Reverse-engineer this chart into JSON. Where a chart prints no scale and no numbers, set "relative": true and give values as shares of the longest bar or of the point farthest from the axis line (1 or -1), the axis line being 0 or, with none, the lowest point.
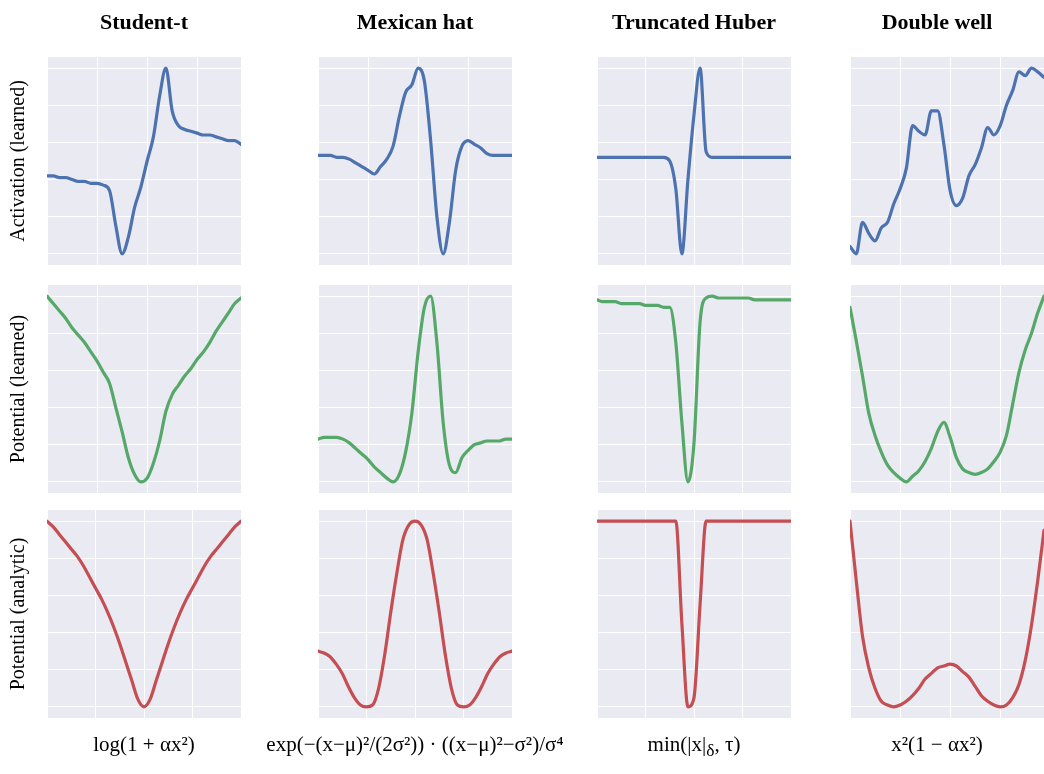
{
  "chart_data": [
    {
      "type": "line",
      "relative": true,
      "grid": true,
      "tick_labels": false,
      "marker": "none",
      "line_style": "solid",
      "title": "Student-t",
      "ylabel": "Activation (learned)",
      "categories": [
        null,
        null,
        null,
        null,
        null,
        null,
        null,
        null,
        null,
        null,
        null,
        null,
        null,
        null,
        null,
        null,
        null,
        null,
        null,
        null,
        null,
        null,
        null,
        null,
        null,
        null,
        null,
        null,
        null,
        null,
        null,
        null
      ],
      "series": [
        {
          "color": "#4c72b0",
          "values": [
            0.42,
            0.42,
            0.41,
            0.41,
            0.4,
            0.39,
            0.39,
            0.38,
            0.38,
            0.37,
            0.34,
            0.15,
            0,
            0.09,
            0.25,
            0.36,
            0.5,
            0.63,
            0.85,
            1,
            0.77,
            0.69,
            0.67,
            0.66,
            0.65,
            0.64,
            0.64,
            0.63,
            0.62,
            0.61,
            0.61,
            0.59
          ]
        }
      ]
    },
    {
      "type": "line",
      "relative": true,
      "grid": true,
      "tick_labels": false,
      "marker": "none",
      "line_style": "solid",
      "title": "Mexican hat",
      "categories": [
        null,
        null,
        null,
        null,
        null,
        null,
        null,
        null,
        null,
        null,
        null,
        null,
        null,
        null,
        null,
        null,
        null,
        null,
        null,
        null,
        null,
        null,
        null,
        null,
        null,
        null,
        null,
        null,
        null,
        null,
        null,
        null
      ],
      "series": [
        {
          "color": "#4c72b0",
          "values": [
            0.53,
            0.53,
            0.53,
            0.52,
            0.52,
            0.51,
            0.49,
            0.47,
            0.45,
            0.43,
            0.47,
            0.51,
            0.58,
            0.74,
            0.87,
            0.91,
            1,
            0.93,
            0.61,
            0.2,
            0,
            0.17,
            0.45,
            0.58,
            0.61,
            0.59,
            0.57,
            0.54,
            0.53,
            0.53,
            0.53,
            0.53
          ]
        }
      ]
    },
    {
      "type": "line",
      "relative": true,
      "grid": true,
      "tick_labels": false,
      "marker": "none",
      "line_style": "solid",
      "title": "Truncated Huber",
      "categories": [
        null,
        null,
        null,
        null,
        null,
        null,
        null,
        null,
        null,
        null,
        null,
        null,
        null,
        null,
        null,
        null,
        null,
        null,
        null,
        null,
        null,
        null,
        null,
        null,
        null,
        null,
        null,
        null,
        null,
        null,
        null,
        null,
        null
      ],
      "series": [
        {
          "color": "#4c72b0",
          "values": [
            0.52,
            0.52,
            0.52,
            0.52,
            0.52,
            0.52,
            0.52,
            0.52,
            0.52,
            0.52,
            0.52,
            0.52,
            0.5,
            0.35,
            0,
            0.4,
            0.75,
            1,
            0.55,
            0.52,
            0.52,
            0.52,
            0.52,
            0.52,
            0.52,
            0.52,
            0.52,
            0.52,
            0.52,
            0.52,
            0.52,
            0.52,
            0.52
          ]
        }
      ]
    },
    {
      "type": "line",
      "relative": true,
      "grid": true,
      "tick_labels": false,
      "marker": "none",
      "line_style": "solid",
      "title": "Double well",
      "categories": [
        null,
        null,
        null,
        null,
        null,
        null,
        null,
        null,
        null,
        null,
        null,
        null,
        null,
        null,
        null,
        null,
        null,
        null,
        null,
        null,
        null,
        null,
        null,
        null,
        null,
        null,
        null,
        null,
        null,
        null,
        null,
        null
      ],
      "series": [
        {
          "color": "#4c72b0",
          "values": [
            0.04,
            0,
            0.17,
            0.11,
            0.07,
            0.14,
            0.17,
            0.27,
            0.35,
            0.46,
            0.69,
            0.66,
            0.64,
            0.77,
            0.77,
            0.59,
            0.34,
            0.26,
            0.3,
            0.42,
            0.48,
            0.57,
            0.68,
            0.64,
            0.69,
            0.8,
            0.88,
            0.98,
            0.96,
            1,
            0.98,
            0.95
          ]
        }
      ]
    },
    {
      "type": "line",
      "relative": true,
      "grid": true,
      "tick_labels": false,
      "marker": "none",
      "line_style": "solid",
      "ylabel": "Potential (learned)",
      "categories": [
        null,
        null,
        null,
        null,
        null,
        null,
        null,
        null,
        null,
        null,
        null,
        null,
        null,
        null,
        null,
        null,
        null,
        null,
        null,
        null,
        null,
        null,
        null,
        null,
        null,
        null,
        null,
        null,
        null,
        null,
        null,
        null
      ],
      "series": [
        {
          "color": "#55a868",
          "values": [
            1,
            0.96,
            0.92,
            0.88,
            0.83,
            0.79,
            0.75,
            0.7,
            0.65,
            0.59,
            0.53,
            0.4,
            0.27,
            0.13,
            0.04,
            0,
            0.02,
            0.1,
            0.22,
            0.38,
            0.47,
            0.52,
            0.57,
            0.61,
            0.66,
            0.7,
            0.75,
            0.81,
            0.86,
            0.91,
            0.96,
            0.99
          ]
        }
      ]
    },
    {
      "type": "line",
      "relative": true,
      "grid": true,
      "tick_labels": false,
      "marker": "none",
      "line_style": "solid",
      "categories": [
        null,
        null,
        null,
        null,
        null,
        null,
        null,
        null,
        null,
        null,
        null,
        null,
        null,
        null,
        null,
        null,
        null,
        null,
        null,
        null,
        null,
        null,
        null,
        null,
        null,
        null,
        null,
        null,
        null,
        null,
        null,
        null
      ],
      "series": [
        {
          "color": "#55a868",
          "values": [
            0.23,
            0.24,
            0.24,
            0.24,
            0.23,
            0.21,
            0.18,
            0.15,
            0.12,
            0.08,
            0.05,
            0.02,
            0,
            0.04,
            0.16,
            0.37,
            0.7,
            0.94,
            1,
            0.75,
            0.32,
            0.09,
            0.05,
            0.13,
            0.17,
            0.2,
            0.21,
            0.22,
            0.22,
            0.22,
            0.23,
            0.23
          ]
        }
      ]
    },
    {
      "type": "line",
      "relative": true,
      "grid": true,
      "tick_labels": false,
      "marker": "none",
      "line_style": "solid",
      "categories": [
        null,
        null,
        null,
        null,
        null,
        null,
        null,
        null,
        null,
        null,
        null,
        null,
        null,
        null,
        null,
        null,
        null,
        null,
        null,
        null,
        null,
        null,
        null,
        null,
        null,
        null,
        null,
        null,
        null,
        null,
        null,
        null,
        null
      ],
      "series": [
        {
          "color": "#55a868",
          "values": [
            0.98,
            0.97,
            0.97,
            0.97,
            0.96,
            0.96,
            0.96,
            0.96,
            0.95,
            0.95,
            0.95,
            0.94,
            0.94,
            0.75,
            0.32,
            0,
            0.21,
            0.86,
            0.99,
            1,
            0.99,
            0.99,
            0.99,
            0.99,
            0.99,
            0.99,
            0.98,
            0.98,
            0.98,
            0.98,
            0.98,
            0.98,
            0.98
          ]
        }
      ]
    },
    {
      "type": "line",
      "relative": true,
      "grid": true,
      "tick_labels": false,
      "marker": "none",
      "line_style": "solid",
      "categories": [
        null,
        null,
        null,
        null,
        null,
        null,
        null,
        null,
        null,
        null,
        null,
        null,
        null,
        null,
        null,
        null,
        null,
        null,
        null,
        null,
        null,
        null,
        null,
        null,
        null,
        null,
        null,
        null,
        null,
        null,
        null,
        null
      ],
      "series": [
        {
          "color": "#55a868",
          "values": [
            0.94,
            0.76,
            0.57,
            0.37,
            0.25,
            0.16,
            0.09,
            0.05,
            0.02,
            0,
            0.03,
            0.06,
            0.11,
            0.18,
            0.27,
            0.32,
            0.24,
            0.13,
            0.07,
            0.05,
            0.04,
            0.05,
            0.07,
            0.11,
            0.16,
            0.25,
            0.42,
            0.59,
            0.71,
            0.8,
            0.91,
            1
          ]
        }
      ]
    },
    {
      "type": "line",
      "relative": true,
      "grid": true,
      "tick_labels": false,
      "marker": "none",
      "line_style": "solid",
      "ylabel": "Potential (analytic)",
      "xlabel": "log(1 + αx²)",
      "categories": [
        null,
        null,
        null,
        null,
        null,
        null,
        null,
        null,
        null,
        null,
        null,
        null,
        null,
        null,
        null,
        null,
        null,
        null,
        null,
        null,
        null,
        null,
        null,
        null,
        null,
        null,
        null,
        null,
        null,
        null,
        null,
        null,
        null
      ],
      "series": [
        {
          "color": "#c44e52",
          "values": [
            1,
            0.97,
            0.93,
            0.89,
            0.85,
            0.81,
            0.76,
            0.7,
            0.64,
            0.58,
            0.51,
            0.43,
            0.34,
            0.24,
            0.14,
            0.04,
            0,
            0.04,
            0.14,
            0.24,
            0.34,
            0.43,
            0.51,
            0.58,
            0.64,
            0.7,
            0.76,
            0.81,
            0.85,
            0.89,
            0.93,
            0.97,
            1
          ]
        }
      ]
    },
    {
      "type": "line",
      "relative": true,
      "grid": true,
      "tick_labels": false,
      "marker": "none",
      "line_style": "solid",
      "xlabel": "exp(−(x−μ)²/(2σ²)) · ((x−μ)²−σ²)/σ⁴",
      "categories": [
        null,
        null,
        null,
        null,
        null,
        null,
        null,
        null,
        null,
        null,
        null,
        null,
        null,
        null,
        null,
        null,
        null,
        null,
        null,
        null,
        null,
        null,
        null,
        null,
        null,
        null,
        null,
        null,
        null,
        null,
        null,
        null,
        null
      ],
      "series": [
        {
          "color": "#c44e52",
          "values": [
            0.3,
            0.29,
            0.27,
            0.23,
            0.18,
            0.11,
            0.05,
            0.01,
            0,
            0.01,
            0.1,
            0.28,
            0.51,
            0.72,
            0.9,
            0.98,
            1,
            0.98,
            0.9,
            0.72,
            0.51,
            0.28,
            0.1,
            0.01,
            0,
            0.01,
            0.05,
            0.11,
            0.18,
            0.23,
            0.27,
            0.29,
            0.3
          ]
        }
      ]
    },
    {
      "type": "line",
      "relative": true,
      "grid": true,
      "tick_labels": false,
      "marker": "none",
      "line_style": "solid",
      "xlabel": "min(|x|$_{δ}$, τ)",
      "categories": [
        null,
        null,
        null,
        null,
        null,
        null,
        null,
        null,
        null,
        null,
        null,
        null,
        null,
        null,
        null,
        null,
        null,
        null,
        null,
        null,
        null,
        null,
        null,
        null,
        null,
        null,
        null,
        null,
        null,
        null,
        null,
        null,
        null
      ],
      "series": [
        {
          "color": "#c44e52",
          "values": [
            1,
            1,
            1,
            1,
            1,
            1,
            1,
            1,
            1,
            1,
            1,
            1,
            1,
            1,
            0.45,
            0,
            0.05,
            0.55,
            1,
            1,
            1,
            1,
            1,
            1,
            1,
            1,
            1,
            1,
            1,
            1,
            1,
            1,
            1
          ]
        }
      ]
    },
    {
      "type": "line",
      "relative": true,
      "grid": true,
      "tick_labels": false,
      "marker": "none",
      "line_style": "solid",
      "xlabel": "x²(1 − αx²)",
      "categories": [
        null,
        null,
        null,
        null,
        null,
        null,
        null,
        null,
        null,
        null,
        null,
        null,
        null,
        null,
        null,
        null,
        null,
        null,
        null,
        null,
        null,
        null,
        null,
        null,
        null,
        null,
        null,
        null,
        null,
        null,
        null,
        null
      ],
      "series": [
        {
          "color": "#c44e52",
          "values": [
            1,
            0.68,
            0.38,
            0.21,
            0.1,
            0.03,
            0.01,
            0,
            0.01,
            0.03,
            0.06,
            0.1,
            0.15,
            0.18,
            0.21,
            0.22,
            0.23,
            0.22,
            0.19,
            0.16,
            0.11,
            0.06,
            0.03,
            0.01,
            0,
            0.01,
            0.05,
            0.12,
            0.25,
            0.44,
            0.68,
            0.95
          ]
        }
      ]
    }
  ]
}
